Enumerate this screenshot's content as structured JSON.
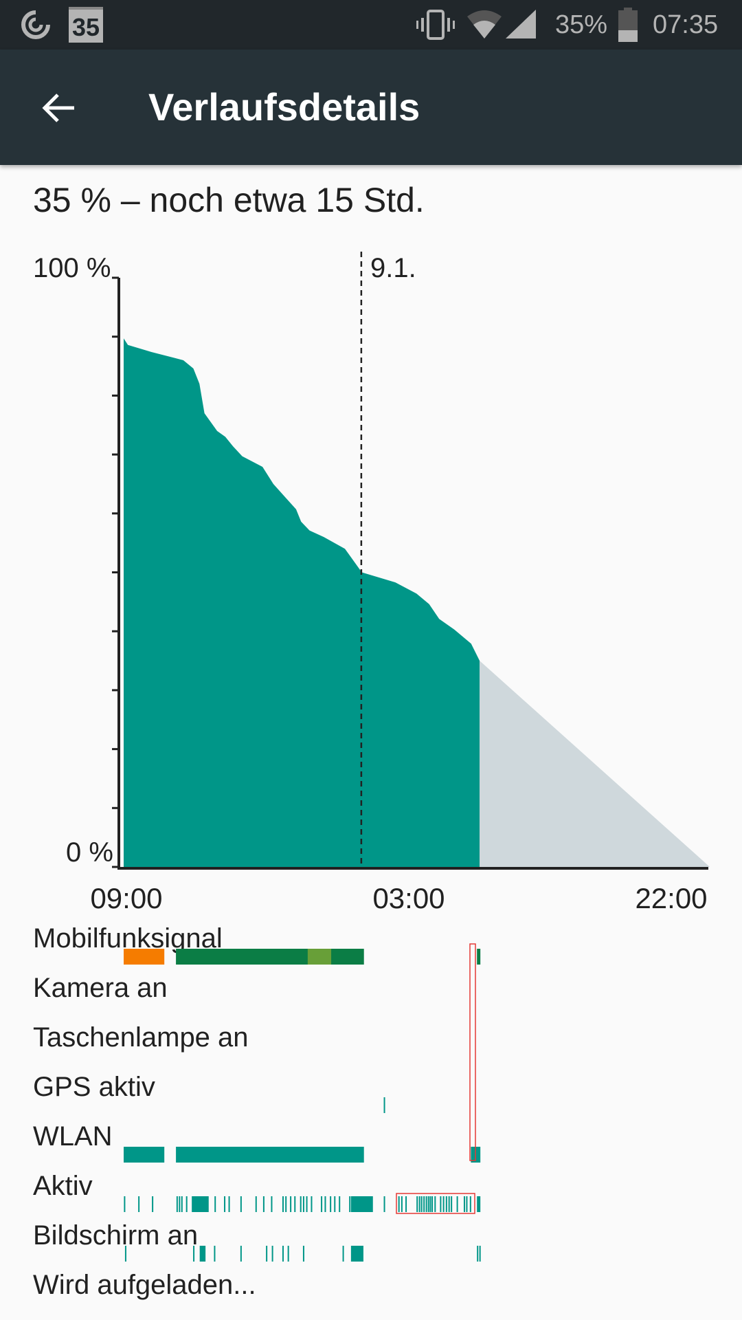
{
  "status_bar": {
    "left_icons": [
      "data-saver-icon",
      "calendar-icon"
    ],
    "calendar_day": "35",
    "right_icons": [
      "vibrate-icon",
      "wifi-icon",
      "cell-signal-icon",
      "battery-icon"
    ],
    "battery_percent": "35%",
    "battery_level": 0.35,
    "time": "07:35"
  },
  "app_bar": {
    "back_icon": "arrow-back-icon",
    "title": "Verlaufsdetails"
  },
  "summary": "35 % – noch etwa 15 Std.",
  "colors": {
    "status_bar": "#21272b",
    "app_bar": "#263238",
    "battery_fill": "#009688",
    "projection": "#cfd8dc",
    "signal_poor": "#f57c00",
    "signal_good": "#0b7d45",
    "signal_moderate": "#689f38",
    "event": "#009688"
  },
  "chart_data": {
    "type": "area",
    "ylabel_top": "100 %",
    "ylabel_bottom": "0 %",
    "ylim": [
      0,
      100
    ],
    "y_ticks_step": 10,
    "x_ticks": [
      "09:00",
      "03:00",
      "22:00"
    ],
    "date_marker": {
      "label": "9.1.",
      "time": "00:00"
    },
    "series": [
      {
        "points": [
          [
            "09:00",
            89.7
          ],
          [
            "09:16",
            88.6
          ],
          [
            "10:45",
            87.4
          ],
          [
            "12:46",
            86.0
          ],
          [
            "13:24",
            84.6
          ],
          [
            "13:47",
            82.0
          ],
          [
            "14:06",
            77.0
          ],
          [
            "14:54",
            74.0
          ],
          [
            "15:25",
            73.0
          ],
          [
            "15:54",
            71.4
          ],
          [
            "16:29",
            69.7
          ],
          [
            "17:46",
            67.9
          ],
          [
            "18:27",
            65.0
          ],
          [
            "19:09",
            62.9
          ],
          [
            "19:53",
            60.7
          ],
          [
            "20:12",
            58.6
          ],
          [
            "20:44",
            57.1
          ],
          [
            "21:38",
            56.0
          ],
          [
            "22:58",
            54.0
          ],
          [
            "00:02",
            50.0
          ],
          [
            "02:09",
            48.3
          ],
          [
            "03:29",
            46.4
          ],
          [
            "04:17",
            44.6
          ],
          [
            "04:55",
            42.1
          ],
          [
            "05:52",
            40.3
          ],
          [
            "06:56",
            37.9
          ],
          [
            "07:28",
            35.0
          ]
        ]
      }
    ],
    "projection": {
      "from": [
        "07:28",
        35.0
      ],
      "to": [
        "22:00",
        0
      ]
    }
  },
  "event_rows": [
    {
      "label": "Mobilfunksignal",
      "segments": [
        [
          "09:00",
          "11:34",
          "signal_poor"
        ],
        [
          "12:18",
          "00:10",
          "signal_good"
        ],
        [
          "20:37",
          "22:06",
          "signal_moderate"
        ],
        [
          "07:18",
          "07:31",
          "signal_good"
        ]
      ]
    },
    {
      "label": "Kamera an",
      "segments": []
    },
    {
      "label": "Taschenlampe an",
      "segments": []
    },
    {
      "label": "GPS aktiv",
      "segments": [
        [
          "01:25",
          "01:25"
        ]
      ]
    },
    {
      "label": "WLAN",
      "segments": [
        [
          "09:00",
          "11:34"
        ],
        [
          "12:18",
          "00:10"
        ],
        [
          "06:55",
          "07:31"
        ]
      ]
    },
    {
      "label": "Aktiv",
      "segments": [
        [
          "09:01",
          "09:01"
        ],
        [
          "09:55",
          "09:55"
        ],
        [
          "10:47",
          "10:47"
        ],
        [
          "12:20",
          "12:20"
        ],
        [
          "12:29",
          "12:29"
        ],
        [
          "12:38",
          "12:38"
        ],
        [
          "12:56",
          "12:56"
        ],
        [
          "13:18",
          "14:22"
        ],
        [
          "14:44",
          "14:44"
        ],
        [
          "15:20",
          "15:20"
        ],
        [
          "15:37",
          "15:37"
        ],
        [
          "16:22",
          "16:22"
        ],
        [
          "17:19",
          "17:19"
        ],
        [
          "17:48",
          "17:48"
        ],
        [
          "18:18",
          "18:18"
        ],
        [
          "19:01",
          "19:01"
        ],
        [
          "19:12",
          "19:12"
        ],
        [
          "19:30",
          "19:30"
        ],
        [
          "19:46",
          "19:46"
        ],
        [
          "20:08",
          "20:08"
        ],
        [
          "20:19",
          "20:19"
        ],
        [
          "20:31",
          "20:31"
        ],
        [
          "20:49",
          "20:49"
        ],
        [
          "21:27",
          "21:27"
        ],
        [
          "21:41",
          "21:41"
        ],
        [
          "22:01",
          "22:01"
        ],
        [
          "22:17",
          "22:17"
        ],
        [
          "22:35",
          "22:35"
        ],
        [
          "23:14",
          "23:14"
        ],
        [
          "23:21",
          "00:44"
        ],
        [
          "01:25",
          "01:25"
        ],
        [
          "02:20",
          "02:20"
        ],
        [
          "02:31",
          "02:31"
        ],
        [
          "02:47",
          "02:47"
        ],
        [
          "03:29",
          "03:29"
        ],
        [
          "03:38",
          "03:38"
        ],
        [
          "03:46",
          "03:46"
        ],
        [
          "03:55",
          "03:55"
        ],
        [
          "04:04",
          "04:04"
        ],
        [
          "04:12",
          "04:12"
        ],
        [
          "04:19",
          "04:19"
        ],
        [
          "04:26",
          "04:26"
        ],
        [
          "04:37",
          "04:37"
        ],
        [
          "04:58",
          "04:58"
        ],
        [
          "05:09",
          "05:09"
        ],
        [
          "05:20",
          "05:20"
        ],
        [
          "05:30",
          "05:30"
        ],
        [
          "05:39",
          "05:39"
        ],
        [
          "06:01",
          "06:01"
        ],
        [
          "06:28",
          "06:28"
        ],
        [
          "06:37",
          "06:37"
        ],
        [
          "06:51",
          "06:51"
        ],
        [
          "07:18",
          "07:31"
        ]
      ]
    },
    {
      "label": "Bildschirm an",
      "segments": [
        [
          "09:05",
          "09:05"
        ],
        [
          "13:23",
          "13:23"
        ],
        [
          "13:48",
          "14:10"
        ],
        [
          "14:42",
          "14:42"
        ],
        [
          "16:22",
          "16:22"
        ],
        [
          "17:59",
          "17:59"
        ],
        [
          "18:21",
          "18:21"
        ],
        [
          "19:01",
          "19:01"
        ],
        [
          "19:21",
          "19:21"
        ],
        [
          "20:19",
          "20:19"
        ],
        [
          "22:49",
          "22:49"
        ],
        [
          "23:21",
          "00:08"
        ],
        [
          "07:18",
          "07:18"
        ],
        [
          "07:27",
          "07:27"
        ]
      ]
    },
    {
      "label": "Wird aufgeladen...",
      "segments": []
    }
  ]
}
